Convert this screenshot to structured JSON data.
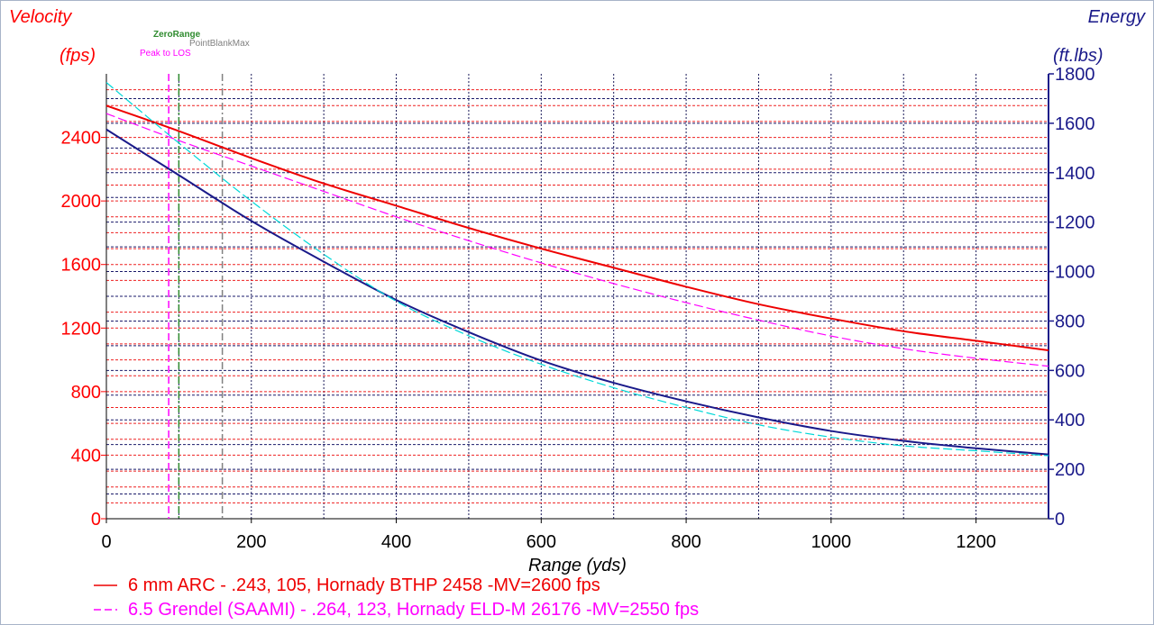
{
  "chart_data": {
    "type": "line",
    "x_axis": {
      "label": "Range (yds)",
      "range": [
        0,
        1300
      ],
      "ticks": [
        0,
        200,
        400,
        600,
        800,
        1000,
        1200
      ]
    },
    "y_left": {
      "title": "Velocity",
      "unit": "(fps)",
      "range": [
        0,
        2800
      ],
      "ticks": [
        0,
        400,
        800,
        1200,
        1600,
        2000,
        2400
      ]
    },
    "y_right": {
      "title": "Energy",
      "unit": "(ft.lbs)",
      "range": [
        0,
        1800
      ],
      "ticks": [
        0,
        200,
        400,
        600,
        800,
        1000,
        1200,
        1400,
        1600,
        1800
      ]
    },
    "grid": true,
    "markers": [
      {
        "label": "ZeroRange",
        "x": 100,
        "color": "#2e8b2e",
        "style": "dash-dot"
      },
      {
        "label": "PointBlankMax",
        "x": 160,
        "color": "#808080",
        "style": "dash-dot"
      },
      {
        "label": "Peak to LOS",
        "x": 86,
        "color": "#ff00ff",
        "style": "dash"
      }
    ],
    "series": [
      {
        "name": "6 mm ARC - .243, 105, Hornady BTHP 2458 -MV=2600 fps",
        "axis": "left",
        "color": "#ee0000",
        "style": "solid",
        "x": [
          0,
          100,
          200,
          300,
          400,
          500,
          600,
          700,
          800,
          900,
          1000,
          1100,
          1200,
          1300
        ],
        "values": [
          2600,
          2440,
          2270,
          2110,
          1970,
          1830,
          1700,
          1580,
          1460,
          1350,
          1260,
          1180,
          1120,
          1060
        ]
      },
      {
        "name": "6.5 Grendel  (SAAMI) - .264, 123, Hornady ELD-M 26176 -MV=2550 fps",
        "axis": "left",
        "color": "#ff00ff",
        "style": "dash",
        "x": [
          0,
          100,
          200,
          300,
          400,
          500,
          600,
          700,
          800,
          900,
          1000,
          1100,
          1200,
          1300
        ],
        "values": [
          2550,
          2380,
          2220,
          2060,
          1900,
          1750,
          1610,
          1480,
          1360,
          1250,
          1150,
          1070,
          1010,
          960
        ]
      },
      {
        "axis": "right",
        "color": "#1a1a8a",
        "style": "solid",
        "x": [
          0,
          100,
          200,
          300,
          400,
          500,
          600,
          700,
          800,
          900,
          1000,
          1100,
          1200,
          1300
        ],
        "values": [
          1575,
          1390,
          1205,
          1040,
          885,
          755,
          640,
          550,
          475,
          410,
          355,
          315,
          285,
          260
        ]
      },
      {
        "axis": "right",
        "color": "#00d8d8",
        "style": "dash",
        "x": [
          0,
          100,
          200,
          300,
          400,
          500,
          600,
          700,
          800,
          900,
          1000,
          1100,
          1200,
          1300
        ],
        "values": [
          1765,
          1520,
          1285,
          1070,
          880,
          740,
          625,
          530,
          450,
          380,
          330,
          295,
          275,
          255
        ]
      }
    ]
  }
}
